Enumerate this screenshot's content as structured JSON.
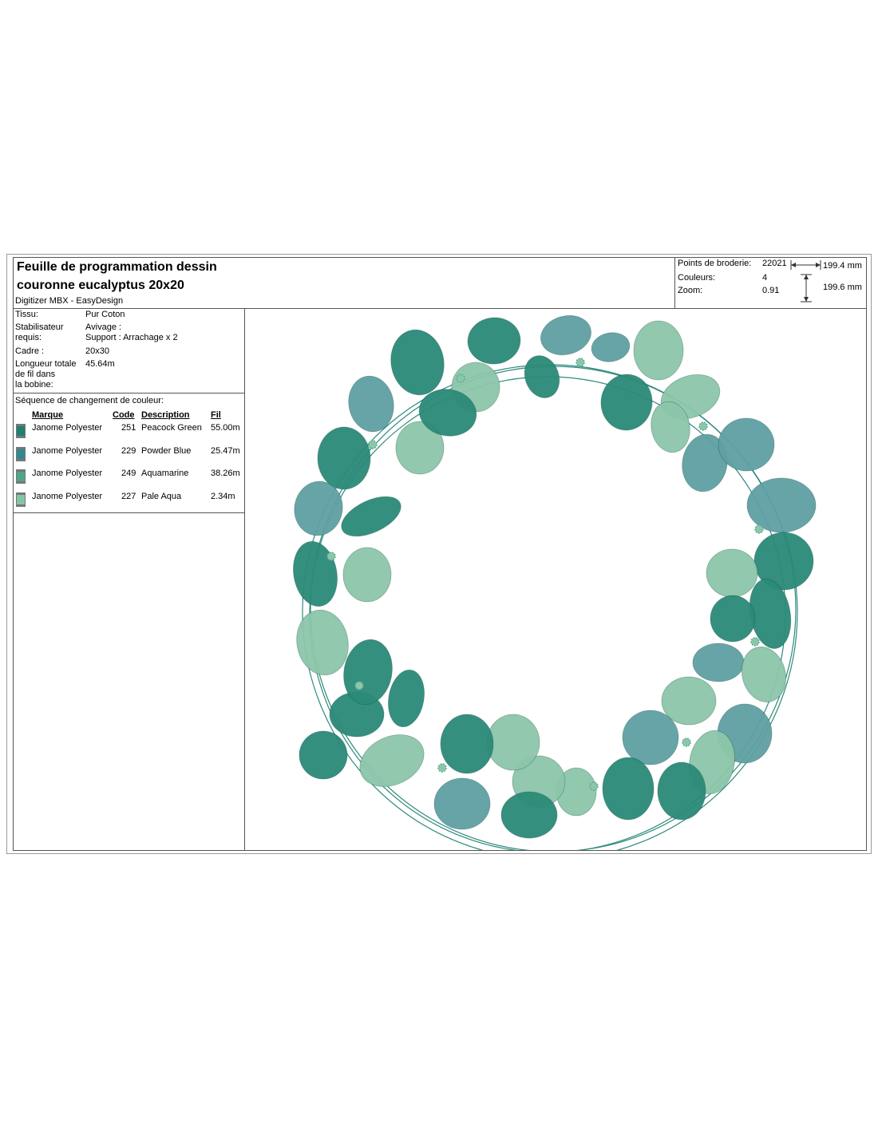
{
  "header": {
    "title_line1": "Feuille de programmation dessin",
    "title_line2": "couronne eucalyptus 20x20",
    "software": "Digitizer MBX - EasyDesign"
  },
  "stats": {
    "points_label": "Points de broderie:",
    "points_value": "22021",
    "colors_label": "Couleurs:",
    "colors_value": "4",
    "zoom_label": "Zoom:",
    "zoom_value": "0.91",
    "width": "199.4 mm",
    "height": "199.6 mm"
  },
  "specs": {
    "tissu_label": "Tissu:",
    "tissu_value": "Pur Coton",
    "stab_label_1": "Stabilisateur",
    "stab_label_2": "requis:",
    "stab_value_1": "Avivage :",
    "stab_value_2": "Support : Arrachage x 2",
    "cadre_label": "Cadre :",
    "cadre_value": "20x30",
    "longueur_label_1": "Longueur totale",
    "longueur_label_2": "de fil dans",
    "longueur_label_3": "la bobine:",
    "longueur_value": "45.64m"
  },
  "sequence": {
    "title": "Séquence de changement de couleur:",
    "headers": {
      "brand": "Marque",
      "code": "Code",
      "description": "Description",
      "thread": "Fil"
    },
    "rows": [
      {
        "brand": "Janome Polyester",
        "code": "251",
        "description": "Peacock Green",
        "thread": "55.00m",
        "color": "#1f7f70"
      },
      {
        "brand": "Janome Polyester",
        "code": "229",
        "description": "Powder Blue",
        "thread": "25.47m",
        "color": "#2f8a8e"
      },
      {
        "brand": "Janome Polyester",
        "code": "249",
        "description": "Aquamarine",
        "thread": "38.26m",
        "color": "#4ea58a"
      },
      {
        "brand": "Janome Polyester",
        "code": "227",
        "description": "Pale Aqua",
        "thread": "2.34m",
        "color": "#86c4a7"
      }
    ]
  },
  "design": {
    "leaf_colors": {
      "peacock_green": "#2b8a78",
      "powder_blue": "#5fa0a3",
      "aquamarine": "#5aab8c",
      "pale_aqua": "#8cc6aa"
    },
    "stem_color": "#2e8a7d"
  }
}
